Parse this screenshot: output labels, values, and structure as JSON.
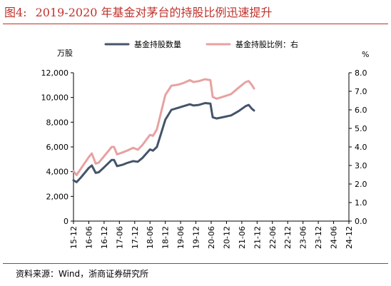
{
  "figure": {
    "number": "图4:",
    "title": "2019-2020 年基金对茅台的持股比例迅速提升",
    "source": "资料来源：Wind，浙商证券研究所"
  },
  "chart_data": {
    "type": "line",
    "x": [
      "15-12",
      "16-06",
      "16-12",
      "17-06",
      "17-12",
      "18-06",
      "18-12",
      "19-06",
      "19-12",
      "20-06",
      "20-12",
      "21-06",
      "21-12",
      "22-06",
      "22-12",
      "23-06",
      "23-12",
      "24-06",
      "24-12"
    ],
    "y_left_unit": "万股",
    "y_right_unit": "%",
    "ylim_left": [
      0,
      12000
    ],
    "ylim_right": [
      0,
      8
    ],
    "left_ticks": [
      "0",
      "2,000",
      "4,000",
      "6,000",
      "8,000",
      "10,000",
      "12,000"
    ],
    "right_ticks": [
      "0.0",
      "1.0",
      "2.0",
      "3.0",
      "4.0",
      "5.0",
      "6.0",
      "7.0",
      "8.0"
    ],
    "legend_position": "top",
    "grid": false,
    "series": [
      {
        "name": "基金持股数量",
        "axis": "left",
        "color": "#44546a",
        "points": [
          [
            0,
            3300
          ],
          [
            0.2,
            3150
          ],
          [
            0.5,
            3550
          ],
          [
            1,
            4300
          ],
          [
            1.2,
            4500
          ],
          [
            1.45,
            3900
          ],
          [
            1.65,
            3950
          ],
          [
            2,
            4350
          ],
          [
            2.5,
            4950
          ],
          [
            2.65,
            4950
          ],
          [
            2.85,
            4450
          ],
          [
            3.2,
            4550
          ],
          [
            3.5,
            4700
          ],
          [
            3.9,
            4850
          ],
          [
            4.2,
            4800
          ],
          [
            4.5,
            5100
          ],
          [
            5,
            5800
          ],
          [
            5.2,
            5700
          ],
          [
            5.45,
            6000
          ],
          [
            6,
            8200
          ],
          [
            6.4,
            9000
          ],
          [
            6.8,
            9150
          ],
          [
            7.2,
            9300
          ],
          [
            7.6,
            9450
          ],
          [
            7.85,
            9350
          ],
          [
            8.2,
            9400
          ],
          [
            8.6,
            9550
          ],
          [
            8.95,
            9500
          ],
          [
            9.1,
            8400
          ],
          [
            9.35,
            8300
          ],
          [
            9.75,
            8400
          ],
          [
            10.3,
            8550
          ],
          [
            10.8,
            8900
          ],
          [
            11.25,
            9300
          ],
          [
            11.45,
            9400
          ],
          [
            11.65,
            9100
          ],
          [
            11.8,
            8950
          ]
        ]
      },
      {
        "name": "基金持股比例：右",
        "axis": "right",
        "color": "#e8a1a1",
        "points": [
          [
            0,
            2.7
          ],
          [
            0.2,
            2.48
          ],
          [
            0.5,
            2.85
          ],
          [
            1,
            3.45
          ],
          [
            1.2,
            3.65
          ],
          [
            1.45,
            3.1
          ],
          [
            1.65,
            3.15
          ],
          [
            2,
            3.5
          ],
          [
            2.5,
            4.0
          ],
          [
            2.65,
            4.0
          ],
          [
            2.85,
            3.6
          ],
          [
            3.2,
            3.7
          ],
          [
            3.5,
            3.8
          ],
          [
            3.9,
            3.95
          ],
          [
            4.2,
            3.85
          ],
          [
            4.5,
            4.1
          ],
          [
            5,
            4.65
          ],
          [
            5.2,
            4.6
          ],
          [
            5.45,
            4.95
          ],
          [
            6,
            6.8
          ],
          [
            6.4,
            7.3
          ],
          [
            6.8,
            7.35
          ],
          [
            7.2,
            7.45
          ],
          [
            7.6,
            7.6
          ],
          [
            7.85,
            7.5
          ],
          [
            8.2,
            7.55
          ],
          [
            8.6,
            7.65
          ],
          [
            8.95,
            7.6
          ],
          [
            9.1,
            6.7
          ],
          [
            9.35,
            6.6
          ],
          [
            9.75,
            6.7
          ],
          [
            10.3,
            6.85
          ],
          [
            10.8,
            7.2
          ],
          [
            11.25,
            7.5
          ],
          [
            11.45,
            7.55
          ],
          [
            11.65,
            7.35
          ],
          [
            11.8,
            7.15
          ]
        ]
      }
    ]
  }
}
